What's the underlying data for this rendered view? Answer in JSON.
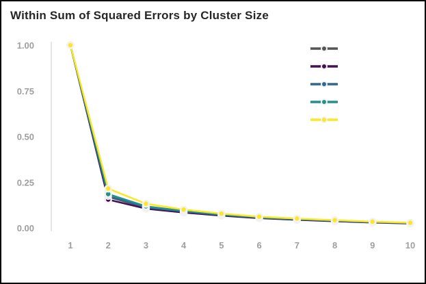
{
  "chart_data": {
    "type": "line",
    "title": "Within Sum of Squared Errors by Cluster Size",
    "xlabel": "",
    "ylabel": "",
    "x": [
      1,
      2,
      3,
      4,
      5,
      6,
      7,
      8,
      9,
      10
    ],
    "xtick_labels": [
      "1",
      "2",
      "3",
      "4",
      "5",
      "6",
      "7",
      "8",
      "9",
      "10"
    ],
    "ylim": [
      0,
      1.0
    ],
    "ytick_values": [
      0,
      0.25,
      0.5,
      0.75,
      1.0
    ],
    "ytick_labels": [
      "0.00",
      "0.25",
      "0.50",
      "0.75",
      "1.00"
    ],
    "grid": false,
    "legend_position": "top-right",
    "series": [
      {
        "name": "",
        "color": "#545454",
        "values": [
          1.0,
          0.17,
          0.11,
          0.088,
          0.07,
          0.055,
          0.046,
          0.038,
          0.031,
          0.026
        ]
      },
      {
        "name": "",
        "color": "#440f54",
        "values": [
          1.0,
          0.155,
          0.105,
          0.084,
          0.067,
          0.053,
          0.044,
          0.036,
          0.029,
          0.024
        ]
      },
      {
        "name": "",
        "color": "#31688e",
        "values": [
          1.0,
          0.175,
          0.112,
          0.09,
          0.071,
          0.056,
          0.047,
          0.039,
          0.031,
          0.026
        ]
      },
      {
        "name": "",
        "color": "#21918c",
        "values": [
          1.0,
          0.185,
          0.118,
          0.093,
          0.073,
          0.058,
          0.048,
          0.04,
          0.032,
          0.027
        ]
      },
      {
        "name": "",
        "color": "#fde725",
        "values": [
          1.0,
          0.215,
          0.132,
          0.1,
          0.078,
          0.061,
          0.051,
          0.042,
          0.034,
          0.028
        ]
      }
    ],
    "marker_stroke": "#f2f2f2",
    "axis_line_color": "#dedede"
  }
}
